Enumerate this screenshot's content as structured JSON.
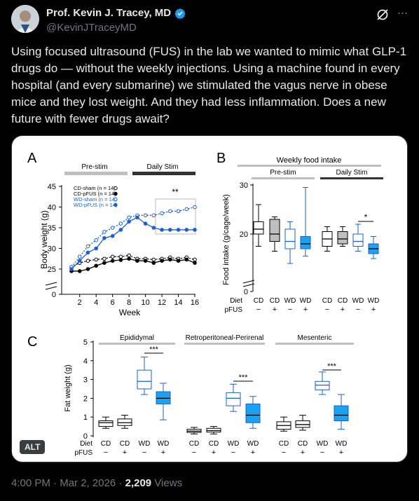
{
  "author": {
    "name": "Prof. Kevin J. Tracey, MD",
    "handle": "@KevinJTraceyMD",
    "avatar_icon": "avatar-photo",
    "verified_icon": "verified-badge-icon",
    "verified_color": "#1d9bf0"
  },
  "actions": {
    "grok_icon": "grok-icon",
    "more_icon": "more-icon"
  },
  "tweet": {
    "text": "Using focused ultrasound (FUS) in the lab we wanted to mimic what GLP-1 drugs do — without the weekly injections. Using a machine found in every hospital (and every submarine) we stimulated the vagus nerve in obese mice and they lost weight. And they had less inflammation. Does a new future with fewer drugs await?"
  },
  "media": {
    "alt_label": "ALT"
  },
  "meta": {
    "time": "4:00 PM",
    "date": "Mar 2, 2026",
    "separator": "·",
    "views_count": "2,209",
    "views_label": "Views"
  },
  "colors": {
    "series_blue": "#1a5fd6",
    "box_blue": "#1aa3f0",
    "bar_grey": "#bfbfbf",
    "bar_dark": "#333333"
  },
  "chart_data": [
    {
      "panel": "A",
      "type": "line",
      "xlabel": "Week",
      "ylabel": "Body weight (g)",
      "x_ticks": [
        "2",
        "4",
        "6",
        "8",
        "10",
        "12",
        "14",
        "16"
      ],
      "y_ticks": [
        "0",
        "25",
        "30",
        "35",
        "40",
        "45"
      ],
      "phase_labels": [
        "Pre-stim",
        "Daily Stim"
      ],
      "significance": "**",
      "x": [
        1,
        2,
        3,
        4,
        5,
        6,
        7,
        8,
        9,
        10,
        11,
        12,
        13,
        14,
        15,
        16
      ],
      "series": [
        {
          "name": "CD-sham (n = 14)",
          "values": [
            25.5,
            26.5,
            27,
            27.3,
            27.5,
            28,
            28,
            28.3,
            27.5,
            27.5,
            27.3,
            27.5,
            27.8,
            27.5,
            27.8,
            27.3
          ]
        },
        {
          "name": "CD-pFUS (n = 14)",
          "values": [
            24.5,
            24.5,
            25,
            25.8,
            26.5,
            27,
            27.2,
            27.5,
            27,
            27,
            26.5,
            27,
            27.3,
            27,
            27.3,
            26.5
          ]
        },
        {
          "name": "WD-sham (n = 14)",
          "values": [
            25.5,
            28,
            30.5,
            32,
            34,
            35,
            36,
            37.5,
            38,
            38,
            38,
            38.5,
            39,
            39,
            39.5,
            40
          ]
        },
        {
          "name": "WD-pFUS (n = 14)",
          "values": [
            25,
            27,
            29,
            30,
            32.5,
            33,
            34.5,
            36.5,
            37.5,
            36,
            35,
            34.5,
            34.5,
            34.5,
            34.5,
            34.5
          ]
        }
      ],
      "legend": [
        "CD-sham (n = 14)",
        "CD-pFUS (n = 14)",
        "WD-sham (n = 14)",
        "WD-pFUS (n = 14)"
      ]
    },
    {
      "panel": "B",
      "type": "box",
      "title": "Weekly food intake",
      "ylabel": "Food intake (g/cage/week)",
      "y_ticks": [
        "0",
        "20",
        "30"
      ],
      "phase_labels": [
        "Pre-stim",
        "Daily Stim"
      ],
      "significance": "*",
      "row_labels": [
        "Diet",
        "pFUS"
      ],
      "categories": [
        "CD",
        "CD",
        "WD",
        "WD",
        "CD",
        "CD",
        "WD",
        "WD"
      ],
      "pfus": [
        "−",
        "+",
        "−",
        "+",
        "−",
        "+",
        "−",
        "+"
      ],
      "boxes": [
        {
          "min": 17.5,
          "q1": 20,
          "median": 21,
          "q3": 22.5,
          "max": 26
        },
        {
          "min": 16.5,
          "q1": 18.5,
          "median": 20,
          "q3": 23,
          "max": 23.5
        },
        {
          "min": 14,
          "q1": 17,
          "median": 18.5,
          "q3": 21,
          "max": 22.5
        },
        {
          "min": 15.5,
          "q1": 17,
          "median": 18,
          "q3": 19.5,
          "max": 29.5
        },
        {
          "min": 16.5,
          "q1": 17.5,
          "median": 19,
          "q3": 20.5,
          "max": 21.5
        },
        {
          "min": 17.5,
          "q1": 18,
          "median": 19,
          "q3": 20.5,
          "max": 21.5
        },
        {
          "min": 16.5,
          "q1": 17.5,
          "median": 18.5,
          "q3": 20,
          "max": 22
        },
        {
          "min": 15,
          "q1": 16,
          "median": 17,
          "q3": 18,
          "max": 19.5
        }
      ]
    },
    {
      "panel": "C",
      "type": "box",
      "ylabel": "Fat weight (g)",
      "y_ticks": [
        "0",
        "1",
        "2",
        "3",
        "4",
        "5"
      ],
      "groups": [
        "Epididymal",
        "Retroperitoneal-Perirenal",
        "Mesenteric"
      ],
      "significance": "***",
      "row_labels": [
        "Diet",
        "pFUS"
      ],
      "categories": [
        "CD",
        "CD",
        "WD",
        "WD",
        "CD",
        "CD",
        "WD",
        "WD",
        "CD",
        "CD",
        "WD",
        "WD"
      ],
      "pfus": [
        "−",
        "+",
        "−",
        "+",
        "−",
        "+",
        "−",
        "+",
        "−",
        "+",
        "−",
        "+"
      ],
      "boxes": [
        {
          "min": 0.4,
          "q1": 0.5,
          "median": 0.7,
          "q3": 0.8,
          "max": 1.0
        },
        {
          "min": 0.4,
          "q1": 0.55,
          "median": 0.7,
          "q3": 0.9,
          "max": 1.1
        },
        {
          "min": 2.2,
          "q1": 2.5,
          "median": 2.9,
          "q3": 3.5,
          "max": 4.2
        },
        {
          "min": 0.85,
          "q1": 1.7,
          "median": 2.0,
          "q3": 2.35,
          "max": 2.8
        },
        {
          "min": 0.1,
          "q1": 0.18,
          "median": 0.25,
          "q3": 0.35,
          "max": 0.45
        },
        {
          "min": 0.1,
          "q1": 0.2,
          "median": 0.28,
          "q3": 0.4,
          "max": 0.5
        },
        {
          "min": 1.3,
          "q1": 1.6,
          "median": 2.0,
          "q3": 2.3,
          "max": 2.75
        },
        {
          "min": 0.4,
          "q1": 0.7,
          "median": 1.1,
          "q3": 1.7,
          "max": 2.1
        },
        {
          "min": 0.25,
          "q1": 0.35,
          "median": 0.55,
          "q3": 0.75,
          "max": 1.0
        },
        {
          "min": 0.3,
          "q1": 0.45,
          "median": 0.6,
          "q3": 0.8,
          "max": 1.1
        },
        {
          "min": 2.2,
          "q1": 2.45,
          "median": 2.7,
          "q3": 2.9,
          "max": 3.4
        },
        {
          "min": 0.35,
          "q1": 0.8,
          "median": 1.1,
          "q3": 1.6,
          "max": 2.2
        }
      ]
    }
  ]
}
